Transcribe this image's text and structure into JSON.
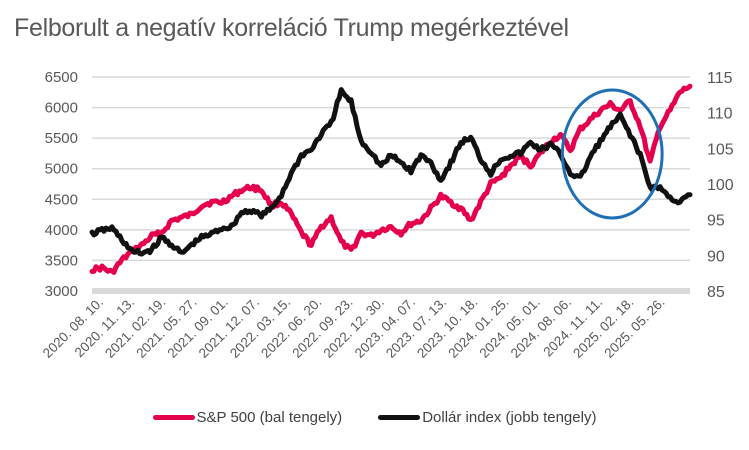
{
  "chart_data": {
    "type": "line",
    "title": "Felborult a negatív korreláció Trump megérkeztével",
    "xlabel": "",
    "ylabel_left": "",
    "ylabel_right": "",
    "x_tick_labels": [
      "2020. 08. 10.",
      "2020. 11. 13.",
      "2021. 02. 19.",
      "2021. 05. 27.",
      "2021. 09. 01.",
      "2021. 12. 07.",
      "2022. 03. 15.",
      "2022. 06. 20.",
      "2022. 09. 23.",
      "2022. 12. 30.",
      "2023. 04. 07.",
      "2023. 07. 13.",
      "2023. 10. 18.",
      "2024. 01. 25.",
      "2024. 05. 01.",
      "2024. 08. 06.",
      "2024. 11. 11.",
      "2025. 02. 18.",
      "2025. 05. 26."
    ],
    "left_axis": {
      "ylim": [
        3000,
        6500
      ],
      "ticks": [
        3000,
        3500,
        4000,
        4500,
        5000,
        5500,
        6000,
        6500
      ]
    },
    "right_axis": {
      "ylim": [
        85,
        115
      ],
      "ticks": [
        85,
        90,
        95,
        100,
        105,
        110,
        115
      ]
    },
    "grid": true,
    "legend_position": "bottom",
    "x": [
      "2020-08",
      "2020-09",
      "2020-10",
      "2020-11",
      "2020-12",
      "2021-01",
      "2021-02",
      "2021-03",
      "2021-04",
      "2021-05",
      "2021-06",
      "2021-07",
      "2021-08",
      "2021-09",
      "2021-10",
      "2021-11",
      "2021-12",
      "2022-01",
      "2022-02",
      "2022-03",
      "2022-04",
      "2022-05",
      "2022-06",
      "2022-07",
      "2022-08",
      "2022-09",
      "2022-10",
      "2022-11",
      "2022-12",
      "2023-01",
      "2023-02",
      "2023-03",
      "2023-04",
      "2023-05",
      "2023-06",
      "2023-07",
      "2023-08",
      "2023-09",
      "2023-10",
      "2023-11",
      "2023-12",
      "2024-01",
      "2024-02",
      "2024-03",
      "2024-04",
      "2024-05",
      "2024-06",
      "2024-07",
      "2024-08",
      "2024-09",
      "2024-10",
      "2024-11",
      "2024-12",
      "2025-01",
      "2025-02",
      "2025-03",
      "2025-04",
      "2025-05",
      "2025-06",
      "2025-07",
      "2025-08"
    ],
    "series": [
      {
        "name": "S&P 500 (bal tengely)",
        "axis": "left",
        "color": "#E5004F",
        "values": [
          3350,
          3380,
          3300,
          3500,
          3650,
          3750,
          3900,
          3950,
          4150,
          4200,
          4250,
          4400,
          4450,
          4450,
          4550,
          4650,
          4700,
          4650,
          4400,
          4450,
          4250,
          3950,
          3750,
          4050,
          4200,
          3800,
          3650,
          3950,
          3900,
          4000,
          4050,
          3950,
          4100,
          4150,
          4350,
          4550,
          4450,
          4350,
          4150,
          4450,
          4750,
          4850,
          5050,
          5200,
          5050,
          5250,
          5450,
          5550,
          5300,
          5650,
          5800,
          5950,
          6050,
          5950,
          6100,
          5700,
          5100,
          5700,
          5950,
          6250,
          6350
        ]
      },
      {
        "name": "Dollár index (jobb tengely)",
        "axis": "right",
        "color": "#111111",
        "values": [
          93.0,
          93.5,
          93.8,
          92.2,
          90.5,
          90.3,
          90.8,
          92.5,
          91.5,
          90.2,
          91.5,
          92.5,
          93.0,
          93.8,
          94.0,
          96.0,
          96.3,
          95.6,
          96.5,
          98.5,
          101.5,
          104.0,
          104.8,
          107.0,
          108.5,
          113.0,
          111.5,
          106.0,
          104.5,
          102.5,
          104.0,
          103.0,
          101.8,
          104.0,
          103.0,
          100.5,
          103.0,
          105.8,
          106.5,
          103.5,
          101.5,
          103.5,
          104.0,
          104.3,
          105.8,
          104.8,
          105.5,
          104.2,
          101.5,
          100.8,
          103.8,
          106.0,
          108.0,
          109.5,
          107.0,
          104.0,
          99.5,
          99.5,
          98.0,
          97.5,
          98.5
        ]
      }
    ],
    "annotations": [
      {
        "type": "ellipse",
        "color": "#1F6FB4",
        "label": "",
        "spans_x": [
          "2024-08",
          "2025-04"
        ]
      }
    ]
  },
  "legend": {
    "items": [
      {
        "label": "S&P 500 (bal tengely)",
        "color": "#E5004F"
      },
      {
        "label": "Dollár index (jobb tengely)",
        "color": "#111111"
      }
    ]
  }
}
